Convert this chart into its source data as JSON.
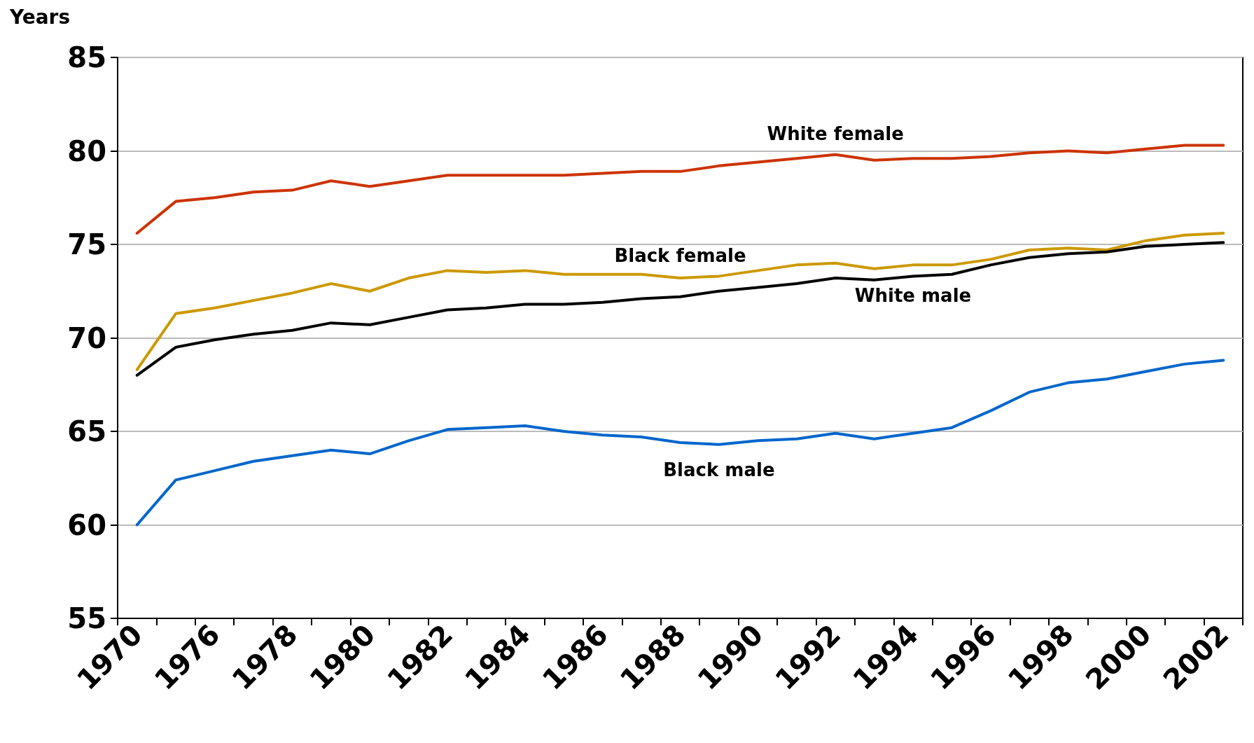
{
  "chart_data": {
    "type": "line",
    "ylabel": "Years",
    "categories": [
      "1970",
      null,
      "1976",
      null,
      "1978",
      null,
      "1980",
      null,
      "1982",
      null,
      "1984",
      null,
      "1986",
      null,
      "1988",
      null,
      "1990",
      null,
      "1992",
      null,
      "1994",
      null,
      "1996",
      null,
      "1998",
      null,
      "2000",
      null,
      "2002"
    ],
    "ylim": [
      55,
      85
    ],
    "yticks": [
      55,
      60,
      65,
      70,
      75,
      80,
      85
    ],
    "grid": "y",
    "legend": false,
    "marker": "none",
    "line_style": "solid",
    "series": [
      {
        "name": "White female",
        "color": "#cc3300",
        "values": [
          75.6,
          77.3,
          77.5,
          77.8,
          77.9,
          78.4,
          78.1,
          78.4,
          78.7,
          78.7,
          78.7,
          78.7,
          78.8,
          78.9,
          78.9,
          79.2,
          79.4,
          79.6,
          79.8,
          79.5,
          79.6,
          79.6,
          79.7,
          79.9,
          80.0,
          79.9,
          80.1,
          80.3,
          80.3
        ]
      },
      {
        "name": "Black female",
        "color": "#cc9900",
        "values": [
          68.3,
          71.3,
          71.6,
          72.0,
          72.4,
          72.9,
          72.5,
          73.2,
          73.6,
          73.5,
          73.6,
          73.4,
          73.4,
          73.4,
          73.2,
          73.3,
          73.6,
          73.9,
          74.0,
          73.7,
          73.9,
          73.9,
          74.2,
          74.7,
          74.8,
          74.7,
          75.2,
          75.5,
          75.6
        ]
      },
      {
        "name": "White male",
        "color": "#000000",
        "values": [
          68.0,
          69.5,
          69.9,
          70.2,
          70.4,
          70.8,
          70.7,
          71.1,
          71.5,
          71.6,
          71.8,
          71.8,
          71.9,
          72.1,
          72.2,
          72.5,
          72.7,
          72.9,
          73.2,
          73.1,
          73.3,
          73.4,
          73.9,
          74.3,
          74.5,
          74.6,
          74.9,
          75.0,
          75.1
        ]
      },
      {
        "name": "Black male",
        "color": "#0066cc",
        "values": [
          60.0,
          62.4,
          62.9,
          63.4,
          63.7,
          64.0,
          63.8,
          64.5,
          65.1,
          65.2,
          65.3,
          65.0,
          64.8,
          64.7,
          64.4,
          64.3,
          64.5,
          64.6,
          64.9,
          64.6,
          64.9,
          65.2,
          66.1,
          67.1,
          67.6,
          67.8,
          68.2,
          68.6,
          68.8
        ]
      }
    ]
  }
}
